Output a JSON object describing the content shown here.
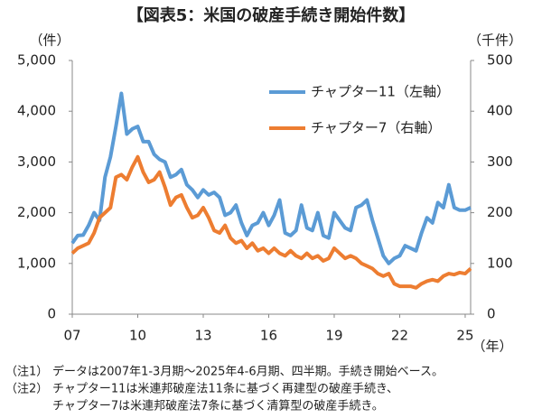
{
  "chart_data": {
    "type": "line",
    "title": "【図表5：米国の破産手続き開始件数】",
    "ylabel": "（件）",
    "y2label": "（千件）",
    "xlabel": "（年）",
    "x": [
      2007,
      2007.25,
      2007.5,
      2007.75,
      2008,
      2008.25,
      2008.5,
      2008.75,
      2009,
      2009.25,
      2009.5,
      2009.75,
      2010,
      2010.25,
      2010.5,
      2010.75,
      2011,
      2011.25,
      2011.5,
      2011.75,
      2012,
      2012.25,
      2012.5,
      2012.75,
      2013,
      2013.25,
      2013.5,
      2013.75,
      2014,
      2014.25,
      2014.5,
      2014.75,
      2015,
      2015.25,
      2015.5,
      2015.75,
      2016,
      2016.25,
      2016.5,
      2016.75,
      2017,
      2017.25,
      2017.5,
      2017.75,
      2018,
      2018.25,
      2018.5,
      2018.75,
      2019,
      2019.25,
      2019.5,
      2019.75,
      2020,
      2020.25,
      2020.5,
      2020.75,
      2021,
      2021.25,
      2021.5,
      2021.75,
      2022,
      2022.25,
      2022.5,
      2022.75,
      2023,
      2023.25,
      2023.5,
      2023.75,
      2024,
      2024.25,
      2024.5,
      2024.75,
      2025,
      2025.25
    ],
    "xlim": [
      2007,
      2025.25
    ],
    "xticks": [
      {
        "value": 2007,
        "label": "07"
      },
      {
        "value": 2010,
        "label": "10"
      },
      {
        "value": 2013,
        "label": "13"
      },
      {
        "value": 2016,
        "label": "16"
      },
      {
        "value": 2019,
        "label": "19"
      },
      {
        "value": 2022,
        "label": "22"
      },
      {
        "value": 2025,
        "label": "25"
      }
    ],
    "ylim": [
      0,
      5000
    ],
    "yticks": [
      0,
      {
        "value": 1000,
        "label": "1,000"
      },
      {
        "value": 2000,
        "label": "2,000"
      },
      {
        "value": 3000,
        "label": "3,000"
      },
      {
        "value": 4000,
        "label": "4,000"
      },
      {
        "value": 5000,
        "label": "5,000"
      }
    ],
    "y2lim": [
      0,
      500
    ],
    "y2ticks": [
      0,
      100,
      200,
      300,
      400,
      500
    ],
    "series": [
      {
        "name": "チャプター11（左軸）",
        "color": "#5b9bd5",
        "values": [
          1400,
          1550,
          1560,
          1750,
          2000,
          1850,
          2700,
          3100,
          3700,
          4350,
          3550,
          3650,
          3700,
          3400,
          3400,
          3150,
          3050,
          3000,
          2700,
          2750,
          2850,
          2550,
          2450,
          2300,
          2450,
          2350,
          2400,
          2300,
          1950,
          2000,
          2150,
          1800,
          1550,
          1750,
          1800,
          2000,
          1750,
          1950,
          2250,
          1600,
          1550,
          1650,
          2150,
          1700,
          1650,
          2000,
          1550,
          1500,
          2000,
          1850,
          1700,
          1650,
          2100,
          2150,
          2250,
          1850,
          1500,
          1150,
          1000,
          1100,
          1150,
          1350,
          1300,
          1250,
          1600,
          1900,
          1800,
          2200,
          2100,
          2550,
          2100,
          2050,
          2050,
          2100
        ]
      },
      {
        "name": "チャプター7（右軸）",
        "color": "#ed7d31",
        "axis": "y2",
        "values": [
          120,
          130,
          135,
          140,
          160,
          190,
          200,
          210,
          270,
          275,
          265,
          290,
          310,
          280,
          260,
          265,
          280,
          250,
          215,
          230,
          235,
          210,
          190,
          195,
          210,
          190,
          165,
          160,
          175,
          150,
          140,
          145,
          130,
          140,
          125,
          130,
          120,
          130,
          120,
          115,
          125,
          115,
          110,
          120,
          110,
          115,
          105,
          110,
          130,
          120,
          110,
          115,
          110,
          100,
          95,
          90,
          80,
          75,
          80,
          60,
          55,
          55,
          55,
          52,
          60,
          65,
          68,
          65,
          75,
          80,
          78,
          82,
          80,
          90
        ]
      }
    ]
  },
  "notes": [
    {
      "label": "（注1）",
      "lines": [
        "データは2007年1-3月期～2025年4-6月期、四半期。手続き開始ベース。"
      ]
    },
    {
      "label": "（注2）",
      "lines": [
        "チャプター11は米連邦破産法11条に基づく再建型の破産手続き、",
        "チャプター7は米連邦破産法7条に基づく清算型の破産手続き。"
      ]
    }
  ]
}
